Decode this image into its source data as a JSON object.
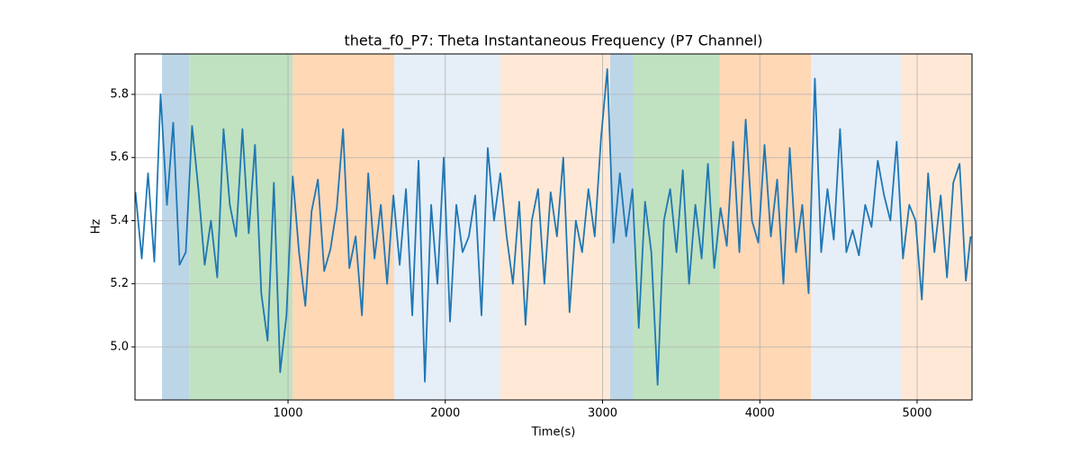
{
  "chart_data": {
    "type": "line",
    "title": "theta_f0_P7: Theta Instantaneous Frequency (P7 Channel)",
    "xlabel": "Time(s)",
    "ylabel": "Hz",
    "color": "#1f77b4",
    "x": [
      30,
      70,
      110,
      150,
      190,
      230,
      270,
      310,
      350,
      390,
      430,
      470,
      510,
      550,
      590,
      630,
      670,
      710,
      750,
      790,
      830,
      870,
      910,
      950,
      990,
      1030,
      1070,
      1110,
      1150,
      1190,
      1230,
      1270,
      1310,
      1350,
      1390,
      1430,
      1470,
      1510,
      1550,
      1590,
      1630,
      1670,
      1710,
      1750,
      1790,
      1830,
      1870,
      1910,
      1950,
      1990,
      2030,
      2070,
      2110,
      2150,
      2190,
      2230,
      2270,
      2310,
      2350,
      2390,
      2430,
      2470,
      2510,
      2550,
      2590,
      2630,
      2670,
      2710,
      2750,
      2790,
      2830,
      2870,
      2910,
      2950,
      2990,
      3030,
      3070,
      3110,
      3150,
      3190,
      3230,
      3270,
      3310,
      3350,
      3390,
      3430,
      3470,
      3510,
      3550,
      3590,
      3630,
      3670,
      3710,
      3750,
      3790,
      3830,
      3870,
      3910,
      3950,
      3990,
      4030,
      4070,
      4110,
      4150,
      4190,
      4230,
      4270,
      4310,
      4350,
      4390,
      4430,
      4470,
      4510,
      4550,
      4590,
      4630,
      4670,
      4710,
      4750,
      4790,
      4830,
      4870,
      4910,
      4950,
      4990,
      5030,
      5070,
      5110,
      5150,
      5190,
      5230,
      5270,
      5310,
      5340
    ],
    "values": [
      5.49,
      5.28,
      5.55,
      5.27,
      5.8,
      5.45,
      5.71,
      5.26,
      5.3,
      5.7,
      5.5,
      5.26,
      5.4,
      5.22,
      5.69,
      5.45,
      5.35,
      5.69,
      5.36,
      5.64,
      5.17,
      5.02,
      5.52,
      4.92,
      5.1,
      5.54,
      5.3,
      5.13,
      5.43,
      5.53,
      5.24,
      5.31,
      5.44,
      5.69,
      5.25,
      5.35,
      5.1,
      5.55,
      5.28,
      5.45,
      5.2,
      5.48,
      5.26,
      5.5,
      5.1,
      5.59,
      4.89,
      5.45,
      5.2,
      5.6,
      5.08,
      5.45,
      5.3,
      5.35,
      5.48,
      5.1,
      5.63,
      5.4,
      5.55,
      5.35,
      5.2,
      5.46,
      5.07,
      5.4,
      5.5,
      5.2,
      5.49,
      5.35,
      5.6,
      5.11,
      5.4,
      5.3,
      5.5,
      5.35,
      5.66,
      5.88,
      5.33,
      5.55,
      5.35,
      5.5,
      5.06,
      5.46,
      5.3,
      4.88,
      5.4,
      5.5,
      5.3,
      5.56,
      5.2,
      5.45,
      5.28,
      5.58,
      5.25,
      5.44,
      5.32,
      5.65,
      5.3,
      5.72,
      5.4,
      5.33,
      5.64,
      5.35,
      5.53,
      5.2,
      5.63,
      5.3,
      5.45,
      5.17,
      5.85,
      5.3,
      5.5,
      5.34,
      5.69,
      5.3,
      5.37,
      5.29,
      5.45,
      5.38,
      5.59,
      5.48,
      5.4,
      5.65,
      5.28,
      5.45,
      5.4,
      5.15,
      5.55,
      5.3,
      5.48,
      5.22,
      5.52,
      5.58,
      5.21,
      5.35
    ],
    "spans": [
      {
        "start": 199,
        "end": 371,
        "color": "#bcd6e8"
      },
      {
        "start": 371,
        "end": 1029,
        "color": "#c0e2c0"
      },
      {
        "start": 1029,
        "end": 1675,
        "color": "#ffd8b6"
      },
      {
        "start": 1675,
        "end": 2350,
        "color": "#e6eef7"
      },
      {
        "start": 2350,
        "end": 3048,
        "color": "#ffe9d6"
      },
      {
        "start": 3048,
        "end": 3197,
        "color": "#bcd6e8"
      },
      {
        "start": 3197,
        "end": 3746,
        "color": "#c0e2c0"
      },
      {
        "start": 3746,
        "end": 4325,
        "color": "#ffd8b6"
      },
      {
        "start": 4325,
        "end": 4903,
        "color": "#e6eef7"
      },
      {
        "start": 4903,
        "end": 5350,
        "color": "#ffe9d6"
      }
    ],
    "xlim": [
      27,
      5349
    ],
    "ylim": [
      4.832,
      5.928
    ],
    "xticks": [
      1000,
      2000,
      3000,
      4000,
      5000
    ],
    "yticks": [
      {
        "value": 5,
        "label": "5.0"
      },
      5.2,
      5.4,
      5.6,
      5.8
    ],
    "grid": true
  }
}
